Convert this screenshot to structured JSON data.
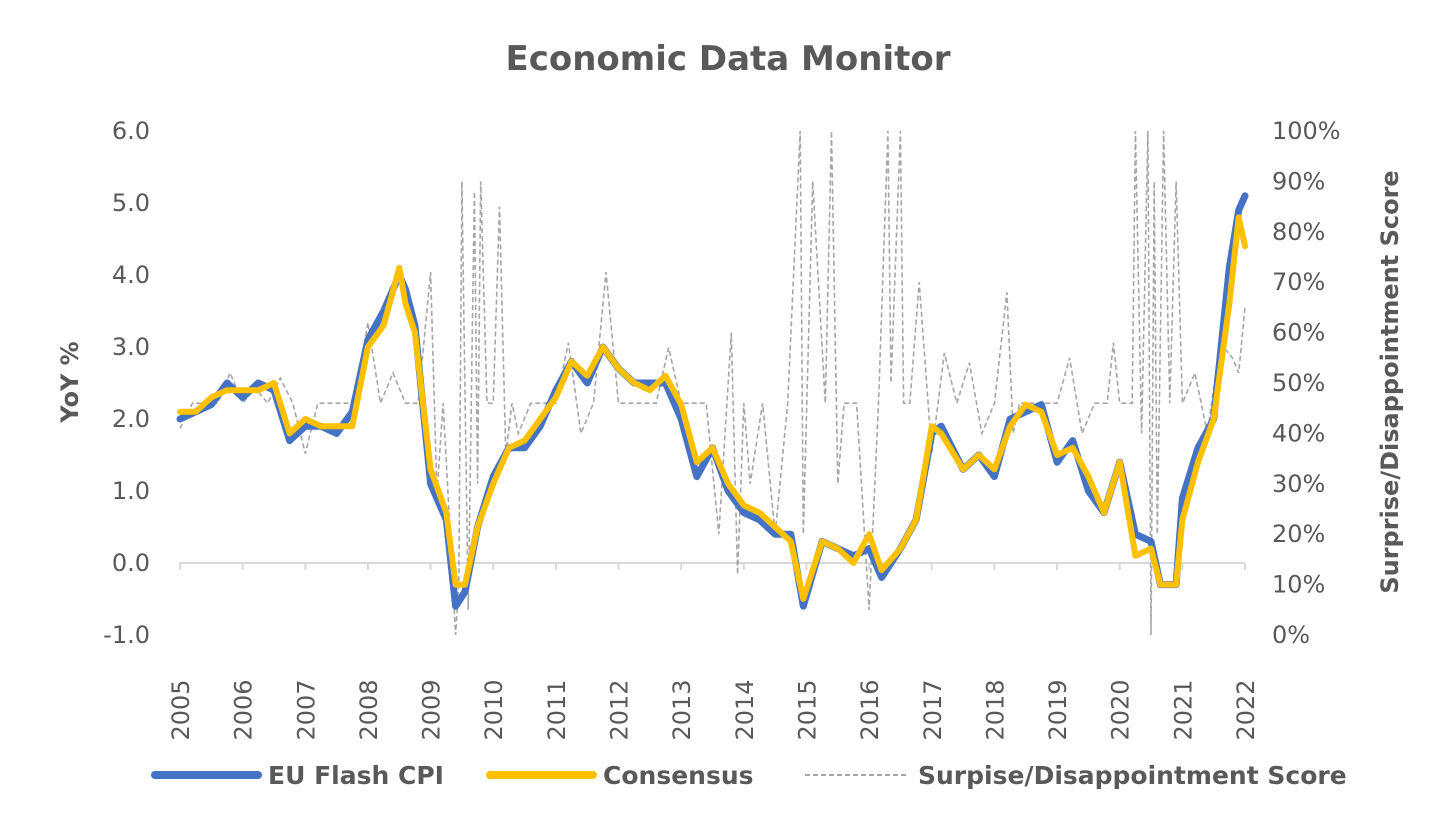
{
  "chart_data": {
    "type": "line",
    "title": "Economic Data Monitor",
    "ylabel": "YoY %",
    "y2label": "Surprise/Disappointment Score",
    "ylim": [
      -1.0,
      6.0
    ],
    "y2lim": [
      0,
      100
    ],
    "xlim": [
      2005,
      2022
    ],
    "yticks": [
      "-1.0",
      "0.0",
      "1.0",
      "2.0",
      "3.0",
      "4.0",
      "5.0",
      "6.0"
    ],
    "y2ticks": [
      "0%",
      "10%",
      "20%",
      "30%",
      "40%",
      "50%",
      "60%",
      "70%",
      "80%",
      "90%",
      "100%"
    ],
    "xticks": [
      "2005",
      "2006",
      "2007",
      "2008",
      "2009",
      "2010",
      "2011",
      "2012",
      "2013",
      "2014",
      "2015",
      "2016",
      "2017",
      "2018",
      "2019",
      "2020",
      "2021",
      "2022"
    ],
    "legend_position": "bottom",
    "colors": {
      "cpi": "#4472C4",
      "consensus": "#FFC000",
      "score": "#A6A6A6",
      "text": "#595959",
      "axis": "#D9D9D9"
    },
    "series": [
      {
        "name": "EU Flash CPI",
        "axis": "left",
        "x": [
          2005.0,
          2005.25,
          2005.5,
          2005.75,
          2006.0,
          2006.25,
          2006.5,
          2006.75,
          2007.0,
          2007.25,
          2007.5,
          2007.75,
          2008.0,
          2008.25,
          2008.5,
          2008.6,
          2008.75,
          2009.0,
          2009.25,
          2009.4,
          2009.55,
          2009.75,
          2010.0,
          2010.25,
          2010.5,
          2010.75,
          2011.0,
          2011.25,
          2011.5,
          2011.75,
          2012.0,
          2012.25,
          2012.5,
          2012.75,
          2013.0,
          2013.25,
          2013.5,
          2013.75,
          2014.0,
          2014.25,
          2014.5,
          2014.75,
          2014.95,
          2015.25,
          2015.5,
          2015.75,
          2016.0,
          2016.2,
          2016.5,
          2016.75,
          2017.0,
          2017.15,
          2017.5,
          2017.75,
          2018.0,
          2018.25,
          2018.5,
          2018.75,
          2019.0,
          2019.25,
          2019.5,
          2019.75,
          2020.0,
          2020.25,
          2020.5,
          2020.65,
          2020.9,
          2021.0,
          2021.25,
          2021.5,
          2021.75,
          2021.9,
          2022.0
        ],
        "values": [
          2.0,
          2.1,
          2.2,
          2.5,
          2.3,
          2.5,
          2.4,
          1.7,
          1.9,
          1.9,
          1.8,
          2.1,
          3.1,
          3.5,
          4.0,
          3.8,
          3.3,
          1.1,
          0.6,
          -0.6,
          -0.4,
          0.5,
          1.2,
          1.6,
          1.6,
          1.9,
          2.4,
          2.8,
          2.5,
          3.0,
          2.7,
          2.5,
          2.5,
          2.5,
          2.0,
          1.2,
          1.6,
          1.0,
          0.7,
          0.6,
          0.4,
          0.4,
          -0.6,
          0.3,
          0.2,
          0.1,
          0.2,
          -0.2,
          0.2,
          0.6,
          1.8,
          1.9,
          1.3,
          1.5,
          1.2,
          2.0,
          2.1,
          2.2,
          1.4,
          1.7,
          1.0,
          0.7,
          1.4,
          0.4,
          0.3,
          -0.3,
          -0.3,
          0.9,
          1.6,
          2.0,
          4.1,
          4.9,
          5.1
        ]
      },
      {
        "name": "Consensus",
        "axis": "left",
        "x": [
          2005.0,
          2005.25,
          2005.5,
          2005.75,
          2006.0,
          2006.25,
          2006.5,
          2006.75,
          2007.0,
          2007.25,
          2007.5,
          2007.75,
          2008.0,
          2008.25,
          2008.5,
          2008.6,
          2008.75,
          2009.0,
          2009.25,
          2009.4,
          2009.55,
          2009.75,
          2010.0,
          2010.25,
          2010.5,
          2010.75,
          2011.0,
          2011.25,
          2011.5,
          2011.75,
          2012.0,
          2012.25,
          2012.5,
          2012.75,
          2013.0,
          2013.25,
          2013.5,
          2013.75,
          2014.0,
          2014.25,
          2014.5,
          2014.75,
          2014.95,
          2015.25,
          2015.5,
          2015.75,
          2016.0,
          2016.2,
          2016.5,
          2016.75,
          2017.0,
          2017.15,
          2017.5,
          2017.75,
          2018.0,
          2018.25,
          2018.5,
          2018.75,
          2019.0,
          2019.25,
          2019.5,
          2019.75,
          2020.0,
          2020.25,
          2020.5,
          2020.65,
          2020.9,
          2021.0,
          2021.25,
          2021.5,
          2021.75,
          2021.9,
          2022.0
        ],
        "values": [
          2.1,
          2.1,
          2.3,
          2.4,
          2.4,
          2.4,
          2.5,
          1.8,
          2.0,
          1.9,
          1.9,
          1.9,
          3.0,
          3.3,
          4.1,
          3.6,
          3.2,
          1.3,
          0.7,
          -0.3,
          -0.3,
          0.5,
          1.1,
          1.6,
          1.7,
          2.0,
          2.3,
          2.8,
          2.6,
          3.0,
          2.7,
          2.5,
          2.4,
          2.6,
          2.2,
          1.4,
          1.6,
          1.1,
          0.8,
          0.7,
          0.5,
          0.3,
          -0.5,
          0.3,
          0.2,
          0.0,
          0.4,
          -0.1,
          0.2,
          0.6,
          1.9,
          1.8,
          1.3,
          1.5,
          1.3,
          1.9,
          2.2,
          2.1,
          1.5,
          1.6,
          1.2,
          0.7,
          1.4,
          0.1,
          0.2,
          -0.3,
          -0.3,
          0.6,
          1.4,
          2.0,
          3.6,
          4.8,
          4.4
        ]
      },
      {
        "name": "Surpise/Disappointment Score",
        "axis": "right",
        "x": [
          2005.0,
          2005.2,
          2005.4,
          2005.6,
          2005.8,
          2006.0,
          2006.2,
          2006.4,
          2006.6,
          2006.8,
          2007.0,
          2007.2,
          2007.4,
          2007.6,
          2007.8,
          2008.0,
          2008.2,
          2008.4,
          2008.6,
          2008.8,
          2009.0,
          2009.1,
          2009.2,
          2009.3,
          2009.4,
          2009.45,
          2009.5,
          2009.6,
          2009.7,
          2009.75,
          2009.8,
          2009.9,
          2010.0,
          2010.1,
          2010.2,
          2010.3,
          2010.4,
          2010.6,
          2010.8,
          2011.0,
          2011.2,
          2011.4,
          2011.6,
          2011.8,
          2012.0,
          2012.2,
          2012.4,
          2012.6,
          2012.8,
          2013.0,
          2013.2,
          2013.4,
          2013.6,
          2013.8,
          2013.9,
          2014.0,
          2014.1,
          2014.3,
          2014.5,
          2014.7,
          2014.9,
          2014.95,
          2015.1,
          2015.3,
          2015.4,
          2015.5,
          2015.6,
          2015.8,
          2016.0,
          2016.15,
          2016.3,
          2016.35,
          2016.5,
          2016.55,
          2016.65,
          2016.8,
          2017.0,
          2017.2,
          2017.4,
          2017.6,
          2017.8,
          2018.0,
          2018.2,
          2018.3,
          2018.4,
          2018.6,
          2018.8,
          2019.0,
          2019.2,
          2019.4,
          2019.6,
          2019.8,
          2019.9,
          2020.0,
          2020.2,
          2020.25,
          2020.35,
          2020.45,
          2020.5,
          2020.55,
          2020.6,
          2020.7,
          2020.8,
          2020.9,
          2021.0,
          2021.2,
          2021.4,
          2021.6,
          2021.8,
          2021.9,
          2022.0
        ],
        "values": [
          41,
          46,
          46,
          46,
          52,
          46,
          49,
          46,
          51,
          46,
          36,
          46,
          46,
          46,
          46,
          62,
          46,
          52,
          46,
          46,
          72,
          28,
          46,
          23,
          0,
          10,
          90,
          5,
          88,
          30,
          90,
          46,
          46,
          85,
          36,
          46,
          40,
          46,
          46,
          46,
          58,
          40,
          46,
          72,
          46,
          46,
          46,
          46,
          57,
          46,
          46,
          46,
          20,
          60,
          12,
          46,
          30,
          46,
          20,
          46,
          100,
          20,
          90,
          46,
          100,
          30,
          46,
          46,
          5,
          46,
          100,
          50,
          100,
          46,
          46,
          70,
          36,
          56,
          46,
          54,
          40,
          46,
          68,
          40,
          46,
          46,
          46,
          46,
          55,
          40,
          46,
          46,
          58,
          46,
          46,
          100,
          40,
          100,
          0,
          90,
          20,
          100,
          46,
          90,
          46,
          52,
          40,
          58,
          55,
          52,
          65
        ]
      }
    ]
  }
}
